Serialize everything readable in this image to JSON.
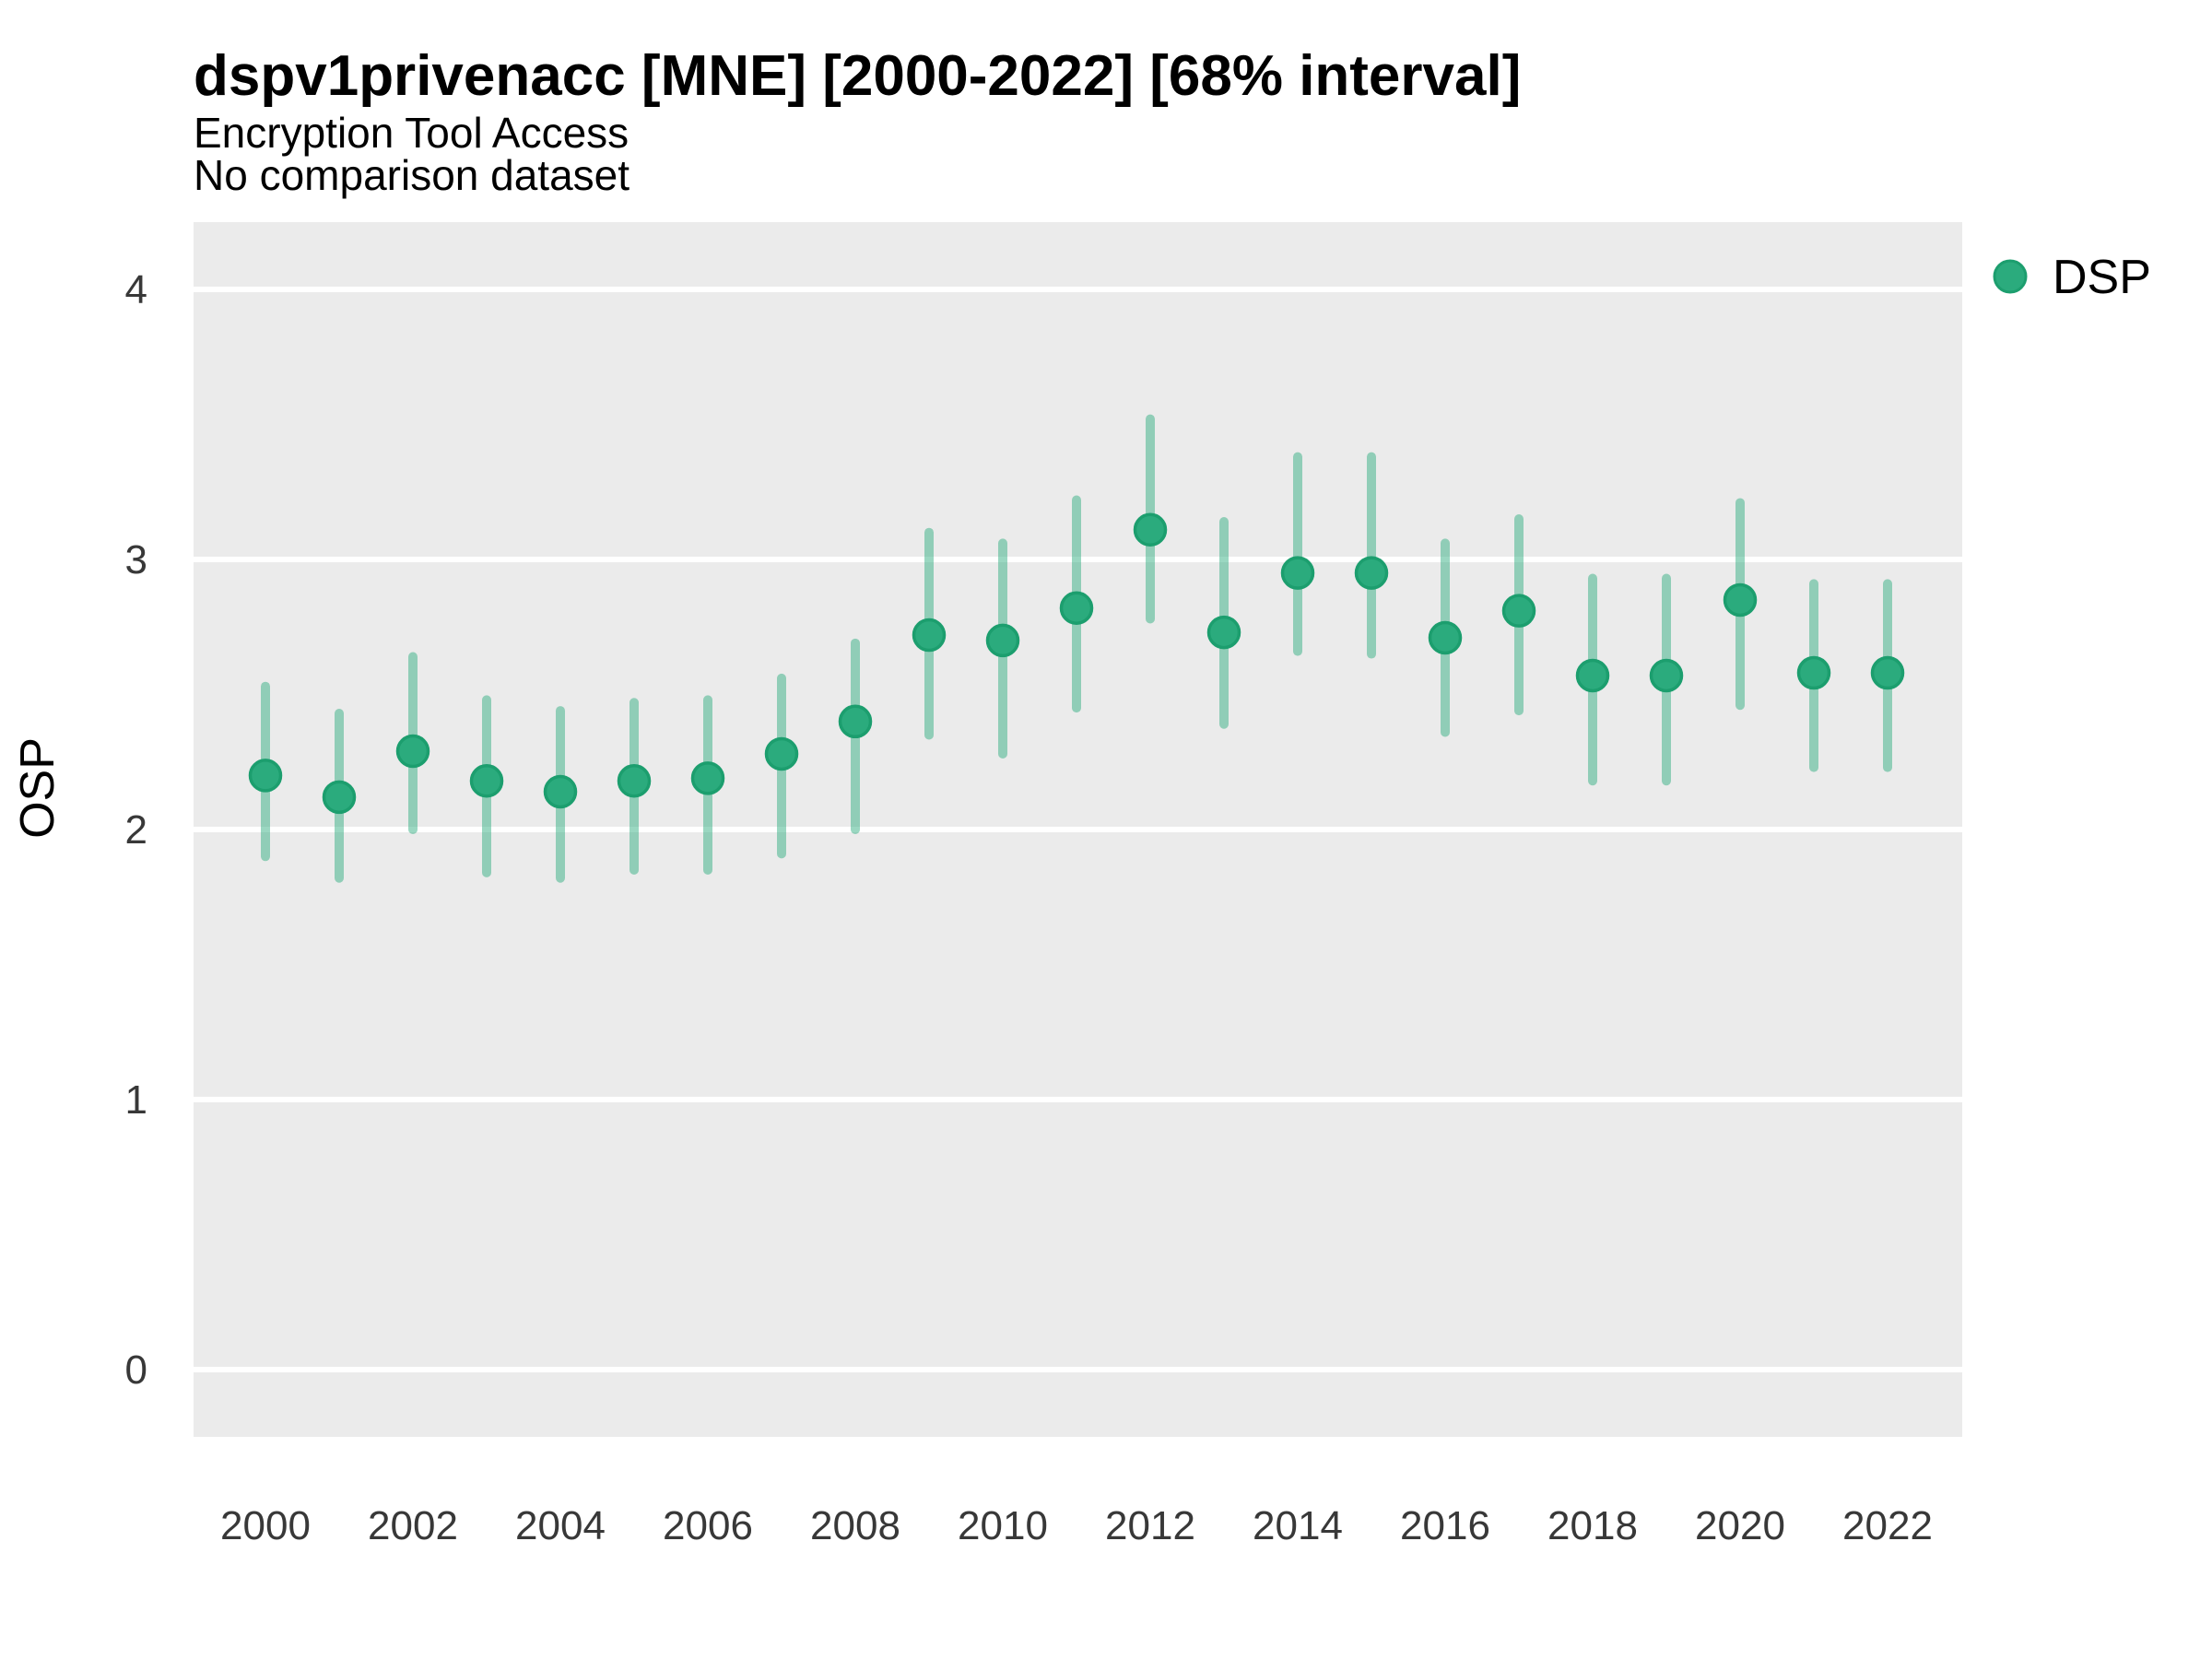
{
  "header": {
    "title": "dspv1privenacc [MNE] [2000-2022] [68% interval]",
    "subtitle": "Encryption Tool Access",
    "note": "No comparison dataset"
  },
  "legend": {
    "items": [
      {
        "label": "DSP",
        "swatch": "point"
      }
    ]
  },
  "axes": {
    "y_title": "OSP",
    "x_title": ""
  },
  "colors": {
    "point_fill": "#2bab7d",
    "point_stroke": "#1c9e6e",
    "interval_bar": "#2bab7d",
    "interval_bar_opacity": 0.48,
    "panel_background": "#ebebeb",
    "gridline": "#ffffff",
    "tick_label": "#383838",
    "text": "#000000"
  },
  "chart_data": {
    "type": "scatter",
    "subtype": "pointrange",
    "title": "dspv1privenacc [MNE] [2000-2022] [68% interval]",
    "subtitle": "Encryption Tool Access",
    "note": "No comparison dataset",
    "interval_level": "68%",
    "xlabel": "",
    "ylabel": "OSP",
    "xlim": [
      1999,
      2023
    ],
    "ylim": [
      -0.25,
      4.25
    ],
    "x_ticks": [
      2000,
      2002,
      2004,
      2006,
      2008,
      2010,
      2012,
      2014,
      2016,
      2018,
      2020,
      2022
    ],
    "y_ticks": [
      0,
      1,
      2,
      3,
      4
    ],
    "grid": "major-only",
    "legend_position": "right",
    "series": [
      {
        "name": "DSP",
        "points": [
          {
            "x": 2000,
            "y": 2.2,
            "lo": 1.9,
            "hi": 2.53
          },
          {
            "x": 2001,
            "y": 2.12,
            "lo": 1.82,
            "hi": 2.43
          },
          {
            "x": 2002,
            "y": 2.29,
            "lo": 2.0,
            "hi": 2.64
          },
          {
            "x": 2003,
            "y": 2.18,
            "lo": 1.84,
            "hi": 2.48
          },
          {
            "x": 2004,
            "y": 2.14,
            "lo": 1.82,
            "hi": 2.44
          },
          {
            "x": 2005,
            "y": 2.18,
            "lo": 1.85,
            "hi": 2.47
          },
          {
            "x": 2006,
            "y": 2.19,
            "lo": 1.85,
            "hi": 2.48
          },
          {
            "x": 2007,
            "y": 2.28,
            "lo": 1.91,
            "hi": 2.56
          },
          {
            "x": 2008,
            "y": 2.4,
            "lo": 2.0,
            "hi": 2.69
          },
          {
            "x": 2009,
            "y": 2.72,
            "lo": 2.35,
            "hi": 3.1
          },
          {
            "x": 2010,
            "y": 2.7,
            "lo": 2.28,
            "hi": 3.06
          },
          {
            "x": 2011,
            "y": 2.82,
            "lo": 2.45,
            "hi": 3.22
          },
          {
            "x": 2012,
            "y": 3.11,
            "lo": 2.78,
            "hi": 3.52
          },
          {
            "x": 2013,
            "y": 2.73,
            "lo": 2.39,
            "hi": 3.14
          },
          {
            "x": 2014,
            "y": 2.95,
            "lo": 2.66,
            "hi": 3.38
          },
          {
            "x": 2015,
            "y": 2.95,
            "lo": 2.65,
            "hi": 3.38
          },
          {
            "x": 2016,
            "y": 2.71,
            "lo": 2.36,
            "hi": 3.06
          },
          {
            "x": 2017,
            "y": 2.81,
            "lo": 2.44,
            "hi": 3.15
          },
          {
            "x": 2018,
            "y": 2.57,
            "lo": 2.18,
            "hi": 2.93
          },
          {
            "x": 2019,
            "y": 2.57,
            "lo": 2.18,
            "hi": 2.93
          },
          {
            "x": 2020,
            "y": 2.85,
            "lo": 2.46,
            "hi": 3.21
          },
          {
            "x": 2021,
            "y": 2.58,
            "lo": 2.23,
            "hi": 2.91
          },
          {
            "x": 2022,
            "y": 2.58,
            "lo": 2.23,
            "hi": 2.91
          }
        ]
      }
    ]
  }
}
